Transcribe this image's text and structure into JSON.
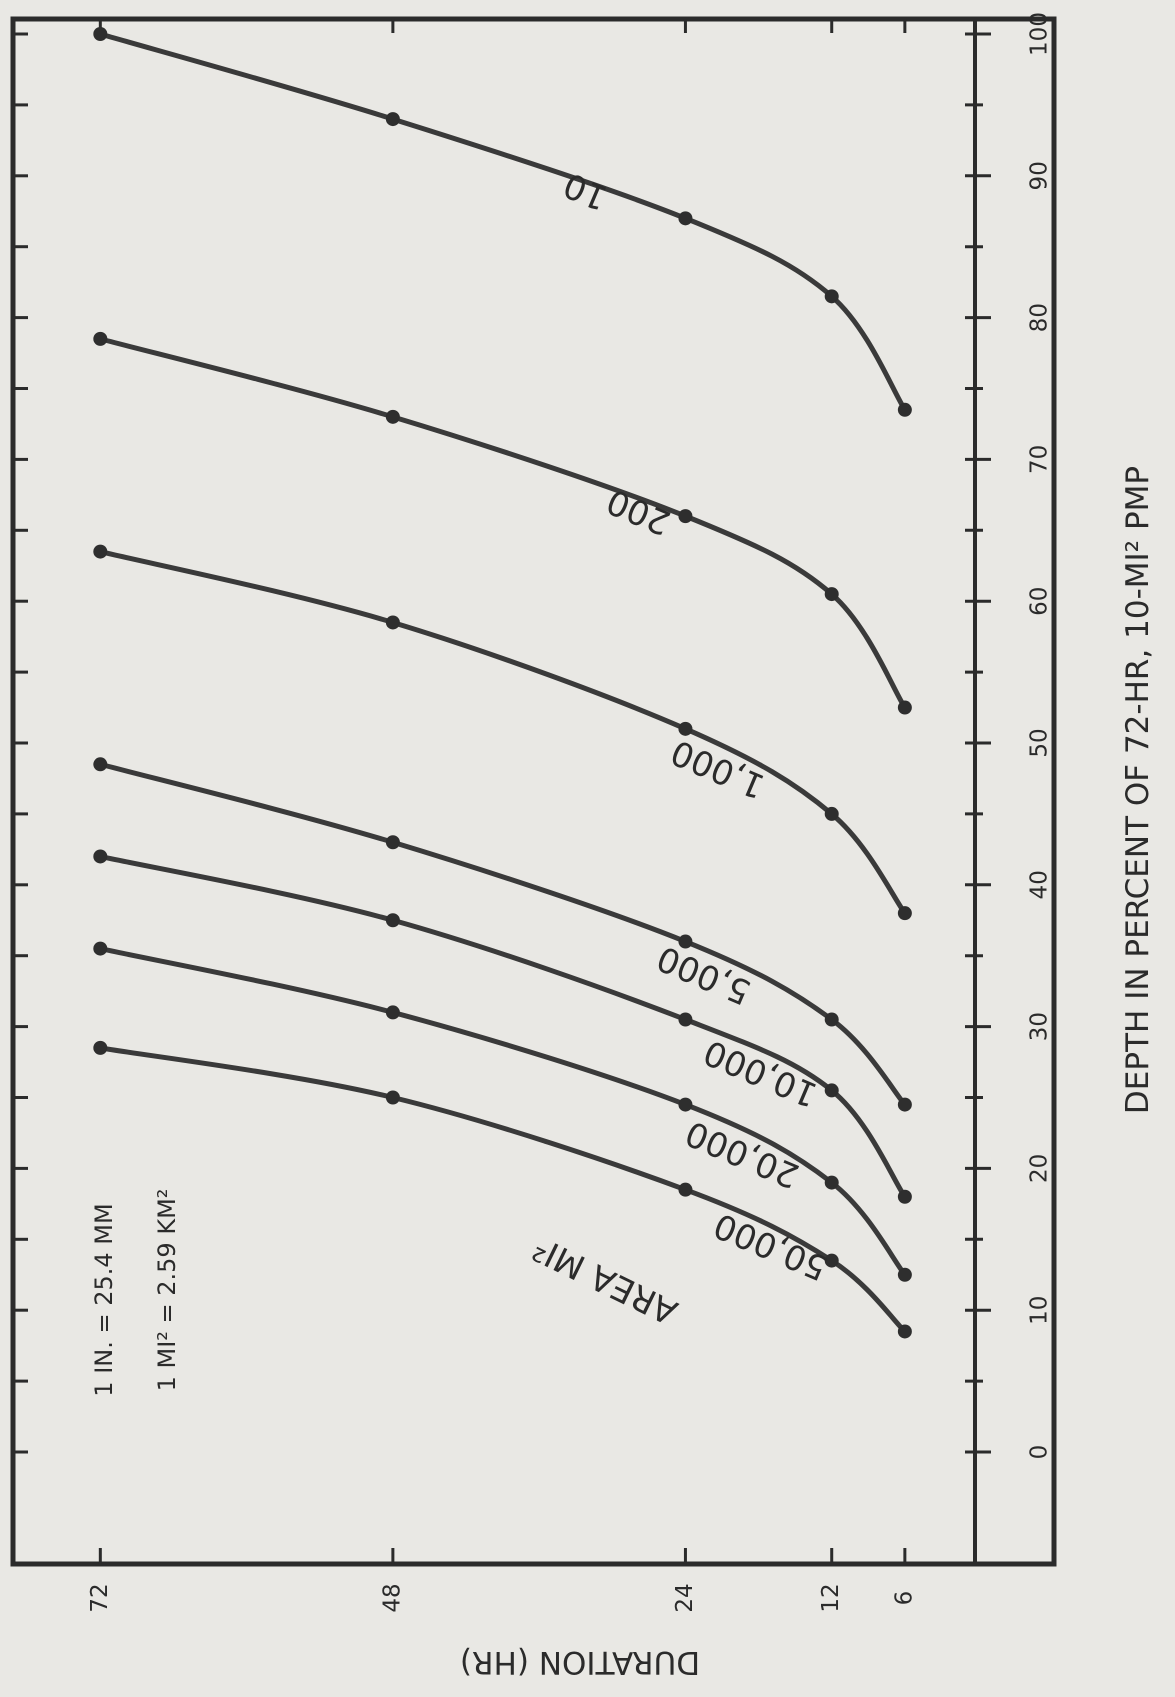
{
  "chart_data": {
    "type": "line",
    "title": "",
    "xlabel": "DURATION (HR)",
    "ylabel": "DEPTH IN PERCENT OF 72-HR, 10-MI² PMP",
    "xlim": [
      0,
      78
    ],
    "ylim": [
      0,
      100
    ],
    "x_ticks": [
      "72",
      "48",
      "24",
      "12",
      "6"
    ],
    "y_ticks": [
      "0",
      "10",
      "20",
      "30",
      "40",
      "50",
      "60",
      "70",
      "80",
      "90",
      "100"
    ],
    "legend_title": "AREA MI²",
    "notes": [
      "1 IN. = 25.4 MM",
      "1 MI² = 2.59 KM²"
    ],
    "x": [
      6,
      12,
      24,
      48,
      72
    ],
    "series": [
      {
        "name": "10",
        "values": [
          73.5,
          81.5,
          87,
          94,
          100
        ]
      },
      {
        "name": "200",
        "values": [
          52.5,
          60.5,
          66,
          73,
          78.5
        ]
      },
      {
        "name": "1,000",
        "values": [
          38,
          45,
          51,
          58.5,
          63.5
        ]
      },
      {
        "name": "5,000",
        "values": [
          24.5,
          30.5,
          36,
          43,
          48.5
        ]
      },
      {
        "name": "10,000",
        "values": [
          18,
          25.5,
          30.5,
          37.5,
          42
        ]
      },
      {
        "name": "20,000",
        "values": [
          12.5,
          19,
          24.5,
          31,
          35.5
        ]
      },
      {
        "name": "50,000",
        "values": [
          8.5,
          13.5,
          18.5,
          25,
          28.5
        ]
      }
    ]
  }
}
